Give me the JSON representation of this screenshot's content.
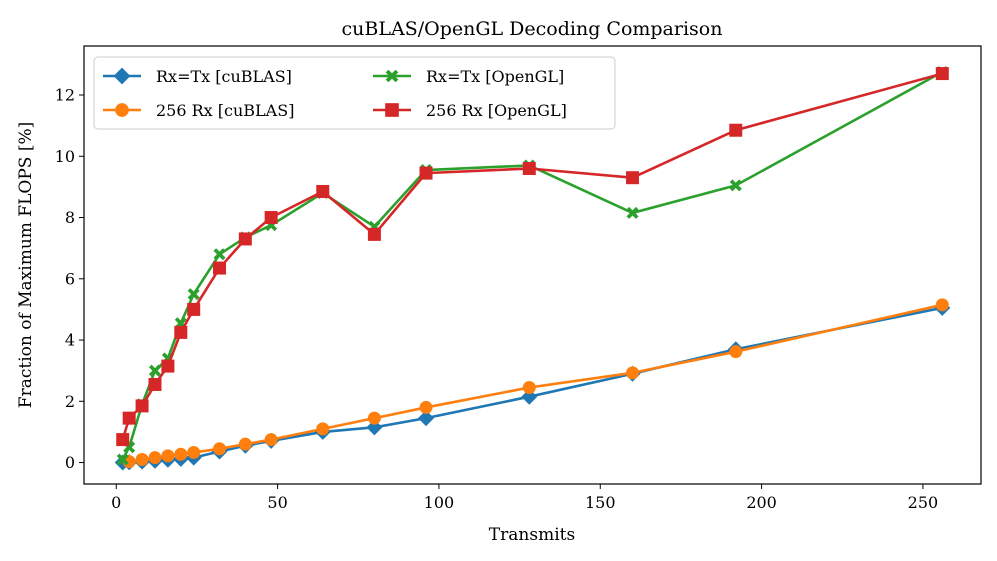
{
  "chart_data": {
    "type": "line",
    "title": "cuBLAS/OpenGL Decoding Comparison",
    "xlabel": "Transmits",
    "ylabel": "Fraction of Maximum FLOPS [%]",
    "xlim": [
      -10,
      268
    ],
    "ylim": [
      -0.7,
      13.6
    ],
    "xticks": [
      0,
      50,
      100,
      150,
      200,
      250
    ],
    "yticks": [
      0,
      2,
      4,
      6,
      8,
      10,
      12
    ],
    "grid": false,
    "legend_position": "top-left",
    "series": [
      {
        "name": "Rx=Tx [cuBLAS]",
        "color": "#1f77b4",
        "marker": "diamond",
        "x": [
          2,
          4,
          8,
          12,
          16,
          20,
          24,
          32,
          40,
          48,
          64,
          80,
          96,
          128,
          160,
          192,
          256
        ],
        "y": [
          0.0,
          0.01,
          0.03,
          0.06,
          0.09,
          0.12,
          0.16,
          0.36,
          0.55,
          0.71,
          1.0,
          1.15,
          1.45,
          2.15,
          2.9,
          3.7,
          5.05
        ]
      },
      {
        "name": "256 Rx [cuBLAS]",
        "color": "#ff7f0e",
        "marker": "circle",
        "x": [
          4,
          8,
          12,
          16,
          20,
          24,
          32,
          40,
          48,
          64,
          80,
          96,
          128,
          160,
          192,
          256
        ],
        "y": [
          0.03,
          0.1,
          0.16,
          0.22,
          0.27,
          0.33,
          0.45,
          0.6,
          0.75,
          1.1,
          1.45,
          1.8,
          2.45,
          2.93,
          3.62,
          5.15
        ]
      },
      {
        "name": "Rx=Tx [OpenGL]",
        "color": "#2ca02c",
        "marker": "x",
        "x": [
          2,
          4,
          8,
          12,
          16,
          20,
          24,
          32,
          40,
          48,
          64,
          80,
          96,
          128,
          160,
          192,
          256
        ],
        "y": [
          0.1,
          0.5,
          1.9,
          3.0,
          3.4,
          4.55,
          5.5,
          6.8,
          7.35,
          7.75,
          8.8,
          7.7,
          9.55,
          9.7,
          8.15,
          9.05,
          12.75
        ]
      },
      {
        "name": "256 Rx [OpenGL]",
        "color": "#d62728",
        "marker": "square",
        "x": [
          2,
          4,
          8,
          12,
          16,
          20,
          24,
          32,
          40,
          48,
          64,
          80,
          96,
          128,
          160,
          192,
          256
        ],
        "y": [
          0.75,
          1.45,
          1.85,
          2.55,
          3.15,
          4.25,
          5.0,
          6.35,
          7.3,
          8.0,
          8.85,
          7.45,
          9.45,
          9.6,
          9.3,
          10.85,
          12.7
        ]
      }
    ]
  }
}
